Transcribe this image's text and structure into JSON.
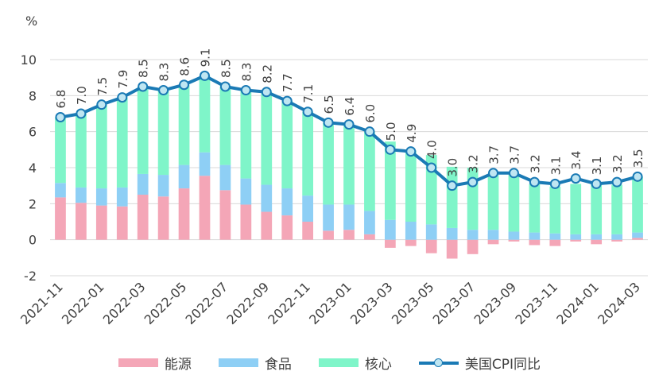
{
  "chart_data": {
    "type": "bar",
    "stacked": true,
    "unit_label": "%",
    "ylim": [
      -2,
      10
    ],
    "yticks": [
      -2,
      0,
      2,
      4,
      6,
      8,
      10
    ],
    "grid": "horizontal",
    "legend_position": "bottom",
    "x_tick_labels": [
      "2021-11",
      "2022-01",
      "2022-03",
      "2022-05",
      "2022-07",
      "2022-09",
      "2022-11",
      "2023-01",
      "2023-03",
      "2023-05",
      "2023-07",
      "2023-09",
      "2023-11",
      "2024-01",
      "2024-03"
    ],
    "categories": [
      "2021-11",
      "2021-12",
      "2022-01",
      "2022-02",
      "2022-03",
      "2022-04",
      "2022-05",
      "2022-06",
      "2022-07",
      "2022-08",
      "2022-09",
      "2022-10",
      "2022-11",
      "2022-12",
      "2023-01",
      "2023-02",
      "2023-03",
      "2023-04",
      "2023-05",
      "2023-06",
      "2023-07",
      "2023-08",
      "2023-09",
      "2023-10",
      "2023-11",
      "2023-12",
      "2024-01",
      "2024-02",
      "2024-03"
    ],
    "series": [
      {
        "name": "能源",
        "color": "#f4a6b7",
        "values": [
          2.35,
          2.05,
          1.9,
          1.85,
          2.5,
          2.4,
          2.85,
          3.55,
          2.75,
          1.95,
          1.55,
          1.35,
          1.0,
          0.5,
          0.55,
          0.3,
          -0.45,
          -0.35,
          -0.75,
          -1.05,
          -0.8,
          -0.25,
          -0.1,
          -0.3,
          -0.35,
          -0.1,
          -0.25,
          -0.1,
          0.1
        ]
      },
      {
        "name": "食品",
        "color": "#8ecff5",
        "values": [
          0.8,
          0.85,
          0.95,
          1.05,
          1.15,
          1.2,
          1.3,
          1.3,
          1.4,
          1.45,
          1.5,
          1.5,
          1.45,
          1.45,
          1.4,
          1.3,
          1.1,
          1.0,
          0.85,
          0.65,
          0.55,
          0.55,
          0.45,
          0.4,
          0.35,
          0.3,
          0.3,
          0.3,
          0.3
        ]
      },
      {
        "name": "核心",
        "color": "#7ff5c9",
        "values": [
          3.65,
          4.1,
          4.65,
          5.0,
          4.85,
          4.7,
          4.45,
          4.25,
          4.35,
          4.9,
          5.15,
          4.85,
          4.65,
          4.55,
          4.45,
          4.4,
          4.35,
          3.95,
          3.85,
          3.4,
          3.45,
          3.05,
          3.2,
          2.7,
          2.6,
          2.8,
          2.8,
          2.75,
          3.1
        ]
      }
    ],
    "line": {
      "name": "美国CPI同比",
      "color": "#1a7ab5",
      "marker_fill": "#bfe6f2",
      "values": [
        6.8,
        7.0,
        7.5,
        7.9,
        8.5,
        8.3,
        8.6,
        9.1,
        8.5,
        8.3,
        8.2,
        7.7,
        7.1,
        6.5,
        6.4,
        6.0,
        5.0,
        4.9,
        4.0,
        3.0,
        3.2,
        3.7,
        3.7,
        3.2,
        3.1,
        3.4,
        3.1,
        3.2,
        3.5
      ],
      "data_labels": [
        "6.8",
        "7.0",
        "7.5",
        "7.9",
        "8.5",
        "8.3",
        "8.6",
        "9.1",
        "8.5",
        "8.3",
        "8.2",
        "7.7",
        "7.1",
        "6.5",
        "6.4",
        "6.0",
        "5.0",
        "4.9",
        "4.0",
        "3.0",
        "3.2",
        "3.7",
        "3.7",
        "3.2",
        "3.1",
        "3.4",
        "3.1",
        "3.2",
        "3.5"
      ]
    }
  }
}
